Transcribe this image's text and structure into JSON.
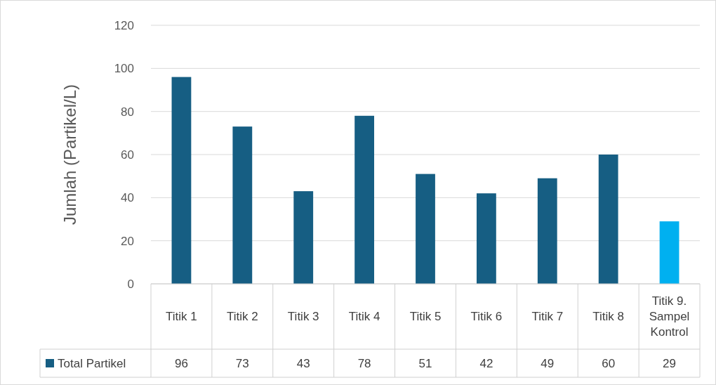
{
  "chart_data": {
    "type": "bar",
    "ylabel": "Jumlah (Partikel/L)",
    "categories": [
      "Titik 1",
      "Titik 2",
      "Titik 3",
      "Titik 4",
      "Titik 5",
      "Titik 6",
      "Titik 7",
      "Titik 8",
      "Titik 9. Sampel Kontrol"
    ],
    "series": [
      {
        "name": "Total Partikel",
        "color": "#165e83",
        "colors": [
          "#165e83",
          "#165e83",
          "#165e83",
          "#165e83",
          "#165e83",
          "#165e83",
          "#165e83",
          "#165e83",
          "#00b0f0"
        ],
        "values": [
          96,
          73,
          43,
          78,
          51,
          42,
          49,
          60,
          29
        ]
      }
    ],
    "ylim": [
      0,
      120
    ],
    "yticks": [
      0,
      20,
      40,
      60,
      80,
      100,
      120
    ],
    "grid": "y",
    "data_labels": true,
    "legend": "bottom left"
  }
}
